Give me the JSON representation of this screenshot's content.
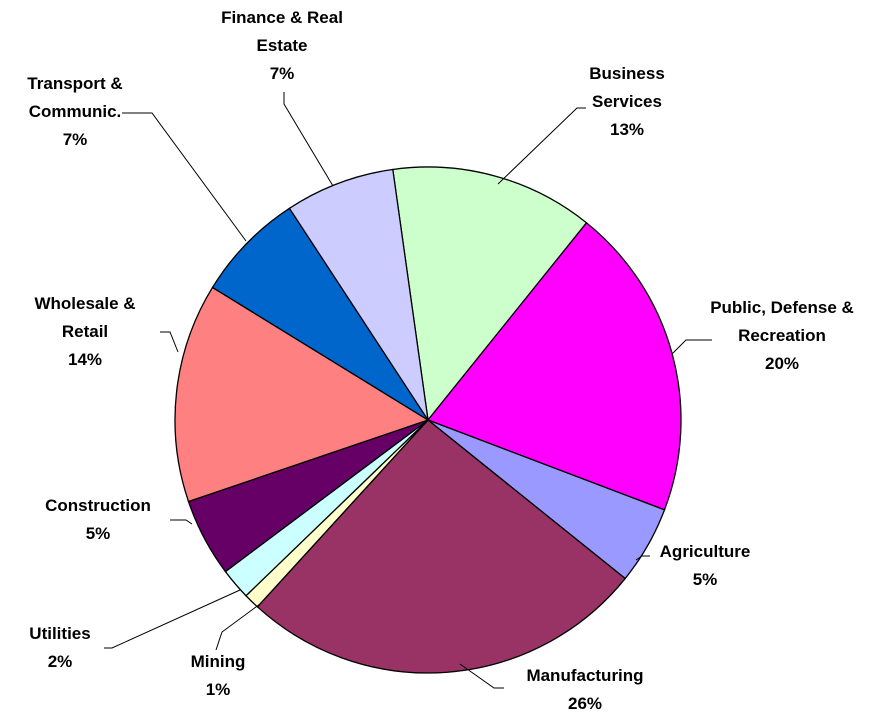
{
  "chart_data": {
    "type": "pie",
    "categories": [
      "Business Services",
      "Public, Defense & Recreation",
      "Agriculture",
      "Manufacturing",
      "Mining",
      "Utilities",
      "Construction",
      "Wholesale & Retail",
      "Transport & Communic.",
      "Finance & Real Estate"
    ],
    "values": [
      13,
      20,
      5,
      26,
      1,
      2,
      5,
      14,
      7,
      7
    ],
    "value_labels": [
      "13%",
      "20%",
      "5%",
      "26%",
      "1%",
      "2%",
      "5%",
      "14%",
      "7%",
      "7%"
    ],
    "colors": [
      "#ccffcc",
      "#ff00ff",
      "#9999ff",
      "#993366",
      "#ffffcc",
      "#ccffff",
      "#660066",
      "#ff8080",
      "#0066cc",
      "#ccccff"
    ]
  }
}
